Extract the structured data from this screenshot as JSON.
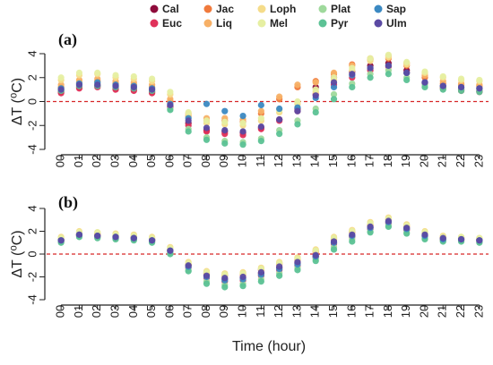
{
  "chart_data": {
    "type": "scatter",
    "categories": [
      "00",
      "01",
      "02",
      "03",
      "04",
      "05",
      "06",
      "07",
      "08",
      "09",
      "10",
      "11",
      "12",
      "13",
      "14",
      "15",
      "16",
      "17",
      "18",
      "19",
      "20",
      "21",
      "22",
      "23"
    ],
    "xlabel": "Time (hour)",
    "ylabel": "ΔT (⁰C)",
    "ylim": [
      -4,
      4
    ],
    "yticks": [
      -4,
      -2,
      0,
      2,
      4
    ],
    "reference_line": 0,
    "grid": false,
    "legend_position": "top-center",
    "legend": [
      {
        "name": "Cal",
        "color": "#8e0b3b"
      },
      {
        "name": "Euc",
        "color": "#e0315a"
      },
      {
        "name": "Jac",
        "color": "#f07a3c"
      },
      {
        "name": "Liq",
        "color": "#f7b066"
      },
      {
        "name": "Loph",
        "color": "#f5dc8a"
      },
      {
        "name": "Mel",
        "color": "#e6efa2"
      },
      {
        "name": "Plat",
        "color": "#9fd99c"
      },
      {
        "name": "Pyr",
        "color": "#5cc295"
      },
      {
        "name": "Sap",
        "color": "#3b89c2"
      },
      {
        "name": "Ulm",
        "color": "#5b4aa3"
      }
    ],
    "panels": [
      {
        "label": "(a)",
        "series": [
          {
            "name": "Cal",
            "values": [
              0.8,
              1.2,
              1.3,
              1.1,
              1.0,
              0.8,
              -0.4,
              -1.8,
              -2.4,
              -2.5,
              -2.6,
              -2.2,
              -1.5,
              -0.6,
              1.2,
              2.0,
              2.5,
              3.0,
              3.2,
              2.6,
              1.6,
              1.2,
              1.0,
              0.9
            ]
          },
          {
            "name": "Euc",
            "values": [
              0.7,
              1.1,
              1.2,
              1.0,
              0.9,
              0.7,
              -0.5,
              -2.0,
              -2.5,
              -2.7,
              -2.8,
              -2.3,
              -1.6,
              -0.8,
              0.6,
              1.4,
              2.0,
              2.6,
              2.9,
              2.4,
              1.5,
              1.1,
              0.9,
              0.8
            ]
          },
          {
            "name": "Jac",
            "values": [
              1.2,
              1.6,
              1.7,
              1.5,
              1.4,
              1.2,
              0.0,
              -1.2,
              -1.6,
              -1.6,
              -1.7,
              -1.0,
              0.2,
              1.2,
              1.7,
              2.3,
              3.1,
              3.5,
              3.6,
              3.0,
              2.0,
              1.5,
              1.4,
              1.3
            ]
          },
          {
            "name": "Liq",
            "values": [
              1.4,
              1.8,
              1.9,
              1.7,
              1.6,
              1.4,
              0.2,
              -1.0,
              -1.4,
              -1.4,
              -1.5,
              -0.8,
              0.4,
              1.4,
              1.6,
              2.4,
              3.0,
              3.6,
              3.8,
              3.2,
              2.2,
              1.7,
              1.5,
              1.4
            ]
          },
          {
            "name": "Loph",
            "values": [
              1.8,
              2.2,
              2.3,
              2.0,
              1.9,
              1.7,
              0.6,
              -1.1,
              -1.8,
              -1.9,
              -2.0,
              -1.6,
              -0.9,
              -0.2,
              0.8,
              1.8,
              2.6,
              3.4,
              3.7,
              3.1,
              2.4,
              2.0,
              1.8,
              1.7
            ]
          },
          {
            "name": "Mel",
            "values": [
              2.0,
              2.4,
              2.4,
              2.2,
              2.1,
              1.9,
              0.8,
              -0.9,
              -1.6,
              -1.7,
              -1.8,
              -1.4,
              -0.7,
              0.0,
              1.0,
              2.0,
              2.8,
              3.6,
              3.9,
              3.3,
              2.5,
              2.1,
              1.9,
              1.8
            ]
          },
          {
            "name": "Plat",
            "values": [
              1.0,
              1.5,
              1.5,
              1.3,
              1.2,
              1.0,
              -0.6,
              -2.3,
              -3.0,
              -3.3,
              -3.4,
              -3.1,
              -2.4,
              -1.6,
              -0.6,
              0.6,
              1.5,
              2.3,
              2.6,
              2.0,
              1.4,
              1.2,
              1.1,
              1.0
            ]
          },
          {
            "name": "Pyr",
            "values": [
              0.9,
              1.3,
              1.3,
              1.2,
              1.1,
              0.9,
              -0.7,
              -2.5,
              -3.2,
              -3.5,
              -3.6,
              -3.3,
              -2.7,
              -1.9,
              -0.9,
              0.2,
              1.2,
              2.0,
              2.3,
              1.8,
              1.2,
              1.0,
              0.9,
              0.8
            ]
          },
          {
            "name": "Sap",
            "values": [
              1.1,
              1.5,
              1.6,
              1.4,
              1.3,
              1.1,
              -0.2,
              -1.4,
              -0.2,
              -0.8,
              -1.2,
              -0.3,
              -0.6,
              -0.5,
              0.3,
              1.2,
              2.2,
              2.8,
              3.0,
              2.4,
              1.6,
              1.3,
              1.2,
              1.1
            ]
          },
          {
            "name": "Ulm",
            "values": [
              1.0,
              1.4,
              1.4,
              1.3,
              1.2,
              1.0,
              -0.3,
              -1.6,
              -2.2,
              -2.4,
              -2.5,
              -2.1,
              -1.5,
              -0.8,
              0.5,
              1.6,
              2.3,
              2.8,
              3.0,
              2.4,
              1.6,
              1.3,
              1.2,
              1.1
            ]
          }
        ]
      },
      {
        "label": "(b)",
        "series": [
          {
            "name": "Cal",
            "values": [
              1.2,
              1.7,
              1.6,
              1.5,
              1.4,
              1.2,
              0.3,
              -1.0,
              -1.9,
              -2.2,
              -2.1,
              -1.7,
              -1.2,
              -0.8,
              -0.2,
              1.0,
              1.6,
              2.3,
              2.8,
              2.2,
              1.6,
              1.3,
              1.3,
              1.2
            ]
          },
          {
            "name": "Euc",
            "values": [
              1.1,
              1.6,
              1.5,
              1.4,
              1.3,
              1.1,
              0.2,
              -1.2,
              -2.1,
              -2.4,
              -2.3,
              -1.9,
              -1.4,
              -1.0,
              -0.3,
              0.9,
              1.5,
              2.2,
              2.7,
              2.1,
              1.5,
              1.2,
              1.2,
              1.1
            ]
          },
          {
            "name": "Jac",
            "values": [
              1.3,
              1.8,
              1.7,
              1.6,
              1.5,
              1.3,
              0.4,
              -0.9,
              -1.7,
              -1.9,
              -1.8,
              -1.4,
              -0.9,
              -0.5,
              0.2,
              1.3,
              1.9,
              2.5,
              3.0,
              2.4,
              1.8,
              1.4,
              1.4,
              1.3
            ]
          },
          {
            "name": "Liq",
            "values": [
              1.3,
              1.8,
              1.8,
              1.6,
              1.5,
              1.3,
              0.4,
              -0.9,
              -1.6,
              -1.8,
              -1.7,
              -1.3,
              -0.8,
              -0.4,
              0.3,
              1.4,
              2.0,
              2.6,
              3.1,
              2.5,
              1.9,
              1.5,
              1.4,
              1.3
            ]
          },
          {
            "name": "Loph",
            "values": [
              1.5,
              2.0,
              1.9,
              1.8,
              1.7,
              1.5,
              0.6,
              -0.7,
              -1.5,
              -1.7,
              -1.6,
              -1.2,
              -0.7,
              -0.3,
              0.4,
              1.5,
              2.1,
              2.8,
              3.2,
              2.6,
              2.0,
              1.6,
              1.5,
              1.4
            ]
          },
          {
            "name": "Mel",
            "values": [
              1.4,
              1.9,
              1.9,
              1.7,
              1.6,
              1.4,
              0.5,
              -0.8,
              -1.6,
              -1.8,
              -1.7,
              -1.3,
              -0.8,
              -0.4,
              0.3,
              1.4,
              2.0,
              2.7,
              3.1,
              2.5,
              1.9,
              1.5,
              1.5,
              1.4
            ]
          },
          {
            "name": "Plat",
            "values": [
              1.1,
              1.6,
              1.5,
              1.4,
              1.3,
              1.1,
              0.1,
              -1.4,
              -2.4,
              -2.7,
              -2.6,
              -2.2,
              -1.7,
              -1.2,
              -0.4,
              0.6,
              1.3,
              2.0,
              2.5,
              1.9,
              1.4,
              1.2,
              1.2,
              1.1
            ]
          },
          {
            "name": "Pyr",
            "values": [
              1.0,
              1.5,
              1.4,
              1.3,
              1.2,
              1.0,
              0.0,
              -1.5,
              -2.6,
              -2.9,
              -2.8,
              -2.4,
              -1.9,
              -1.4,
              -0.6,
              0.4,
              1.1,
              1.9,
              2.4,
              1.8,
              1.3,
              1.1,
              1.1,
              1.0
            ]
          },
          {
            "name": "Sap",
            "values": [
              1.2,
              1.7,
              1.6,
              1.5,
              1.4,
              1.2,
              0.3,
              -1.1,
              -2.0,
              -2.3,
              -2.2,
              -1.8,
              -1.3,
              -0.9,
              -0.2,
              1.0,
              1.6,
              2.3,
              2.8,
              2.2,
              1.6,
              1.3,
              1.3,
              1.2
            ]
          },
          {
            "name": "Ulm",
            "values": [
              1.2,
              1.7,
              1.6,
              1.5,
              1.4,
              1.2,
              0.3,
              -1.0,
              -1.9,
              -2.1,
              -2.0,
              -1.6,
              -1.1,
              -0.7,
              -0.1,
              1.1,
              1.7,
              2.4,
              2.9,
              2.3,
              1.7,
              1.4,
              1.3,
              1.2
            ]
          }
        ]
      }
    ]
  }
}
